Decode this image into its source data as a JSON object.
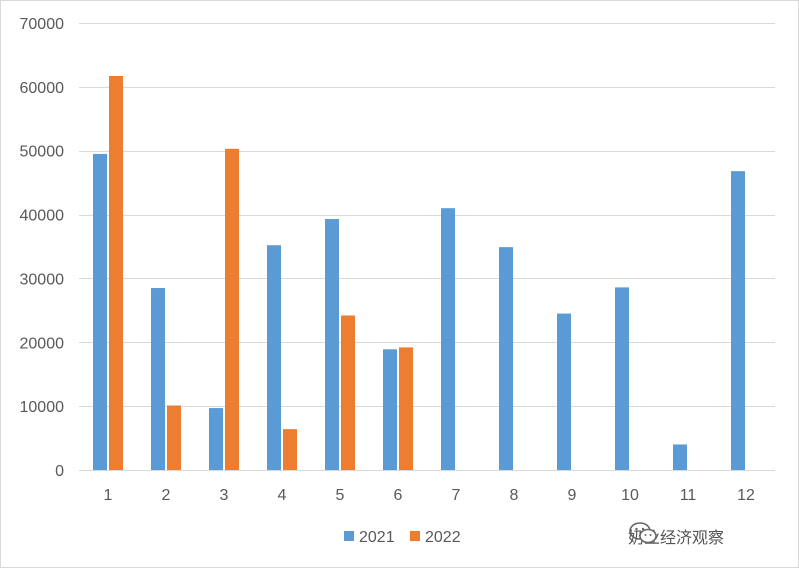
{
  "chart_data": {
    "type": "bar",
    "categories": [
      "1",
      "2",
      "3",
      "4",
      "5",
      "6",
      "7",
      "8",
      "9",
      "10",
      "11",
      "12"
    ],
    "series": [
      {
        "name": "2021",
        "color": "#5b9bd5",
        "values": [
          49500,
          28500,
          9700,
          35200,
          39300,
          18900,
          41000,
          34900,
          24500,
          28600,
          4000,
          46800
        ]
      },
      {
        "name": "2022",
        "color": "#ed7d31",
        "values": [
          61700,
          10100,
          50300,
          6400,
          24200,
          19200,
          null,
          null,
          null,
          null,
          null,
          null
        ]
      }
    ],
    "ylim": [
      0,
      70000
    ],
    "yticks": [
      0,
      10000,
      20000,
      30000,
      40000,
      50000,
      60000,
      70000
    ],
    "grid": true,
    "legend_position": "bottom"
  },
  "watermark": {
    "icon": "wechat-icon",
    "text": "奶业经济观察"
  }
}
